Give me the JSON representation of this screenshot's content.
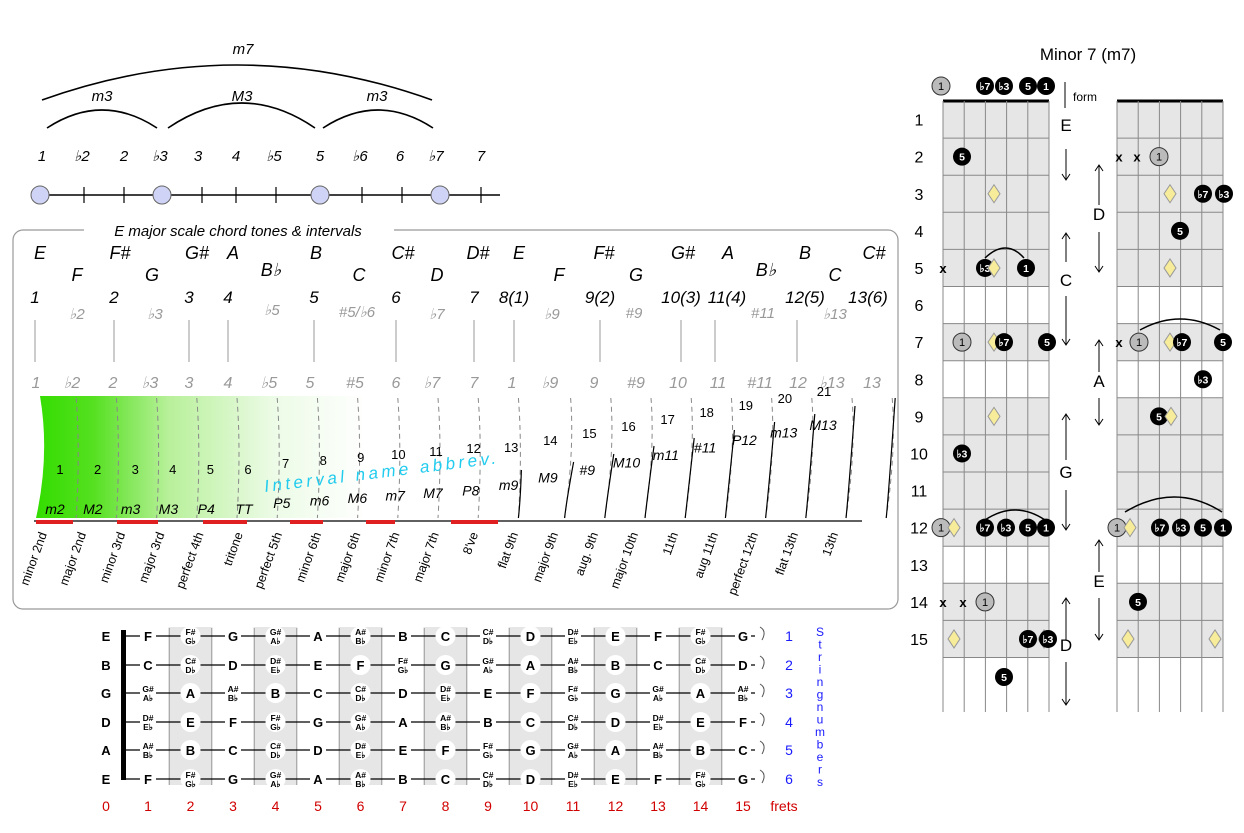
{
  "top_intervals": {
    "arcs": {
      "m7": "m7",
      "m3_a": "m3",
      "M3": "M3",
      "m3_b": "m3"
    },
    "degrees": [
      "1",
      "♭2",
      "2",
      "♭3",
      "3",
      "4",
      "♭5",
      "5",
      "♭6",
      "6",
      "♭7",
      "7"
    ]
  },
  "scale_panel": {
    "title": "E major scale chord tones & intervals",
    "note_row1": [
      "E",
      "F#",
      "G#",
      "A",
      "B",
      "C#",
      "D#",
      "E",
      "F#",
      "G#",
      "A",
      "B",
      "C#"
    ],
    "note_row2": [
      "F",
      "G",
      "B♭",
      "C",
      "D",
      "F",
      "G",
      "B♭",
      "C"
    ],
    "degree_row1": [
      "1",
      "2",
      "3",
      "4",
      "5",
      "6",
      "7",
      "8(1)",
      "9(2)",
      "10(3)",
      "11(4)",
      "12(5)",
      "13(6)"
    ],
    "degree_row2": [
      "♭2",
      "♭3",
      "♭5",
      "#5/♭6",
      "♭7",
      "♭9",
      "#9",
      "#11",
      "♭13"
    ],
    "gray_row": [
      "1",
      "♭2",
      "2",
      "♭3",
      "3",
      "4",
      "♭5",
      "5",
      "#5",
      "6",
      "♭7",
      "7",
      "1",
      "♭9",
      "9",
      "#9",
      "10",
      "11",
      "#11",
      "12",
      "♭13",
      "13"
    ],
    "semitones": [
      "1",
      "2",
      "3",
      "4",
      "5",
      "6",
      "7",
      "8",
      "9",
      "10",
      "11",
      "12",
      "13",
      "14",
      "15",
      "16",
      "17",
      "18",
      "19",
      "20",
      "21"
    ],
    "abbrevs": [
      "m2",
      "M2",
      "m3",
      "M3",
      "P4",
      "TT",
      "P5",
      "m6",
      "M6",
      "m7",
      "M7",
      "P8",
      "m9",
      "M9",
      "#9",
      "M10",
      "m11",
      "#11",
      "P12",
      "m13",
      "M13"
    ],
    "watermark": "Interval name abbrev.",
    "names": [
      "minor 2nd",
      "major 2nd",
      "minor 3rd",
      "major 3rd",
      "perfect 4th",
      "tritone",
      "perfect 5th",
      "minor 6th",
      "major 6th",
      "minor 7th",
      "major 7th",
      "8've",
      "flat 9th",
      "major 9th",
      "aug. 9th",
      "major 10th",
      "11th",
      "aug 11th",
      "perfect 12th",
      "flat 13th",
      "13th"
    ]
  },
  "fretboard": {
    "string_names": [
      "E",
      "B",
      "G",
      "D",
      "A",
      "E"
    ],
    "string_numbers": [
      "1",
      "2",
      "3",
      "4",
      "5",
      "6"
    ],
    "string_numbers_label": "String numbers",
    "fret_numbers": [
      "0",
      "1",
      "2",
      "3",
      "4",
      "5",
      "6",
      "7",
      "8",
      "9",
      "10",
      "11",
      "12",
      "13",
      "14",
      "15"
    ],
    "frets_label": "frets",
    "notes": [
      [
        "F",
        "F#|G♭",
        "G",
        "G#|A♭",
        "A",
        "A#|B♭",
        "B",
        "C",
        "C#|D♭",
        "D",
        "D#|E♭",
        "E",
        "F",
        "F#|G♭",
        "G"
      ],
      [
        "C",
        "C#|D♭",
        "D",
        "D#|E♭",
        "E",
        "F",
        "F#|G♭",
        "G",
        "G#|A♭",
        "A",
        "A#|B♭",
        "B",
        "C",
        "C#|D♭",
        "D"
      ],
      [
        "G#|A♭",
        "A",
        "A#|B♭",
        "B",
        "C",
        "C#|D♭",
        "D",
        "D#|E♭",
        "E",
        "F",
        "F#|G♭",
        "G",
        "G#|A♭",
        "A",
        "A#|B♭"
      ],
      [
        "D#|E♭",
        "E",
        "F",
        "F#|G♭",
        "G",
        "G#|A♭",
        "A",
        "A#|B♭",
        "B",
        "C",
        "C#|D♭",
        "D",
        "D#|E♭",
        "E",
        "F"
      ],
      [
        "A#|B♭",
        "B",
        "C",
        "C#|D♭",
        "D",
        "D#|E♭",
        "E",
        "F",
        "F#|G♭",
        "G",
        "G#|A♭",
        "A",
        "A#|B♭",
        "B",
        "C"
      ],
      [
        "F",
        "F#|G♭",
        "G",
        "G#|A♭",
        "A",
        "A#|B♭",
        "B",
        "C",
        "C#|D♭",
        "D",
        "D#|E♭",
        "E",
        "F",
        "F#|G♭",
        "G"
      ]
    ]
  },
  "chord_chart": {
    "title": "Minor 7 (m7)",
    "form_label": "form",
    "fret_numbers": [
      "1",
      "2",
      "3",
      "4",
      "5",
      "6",
      "7",
      "8",
      "9",
      "10",
      "11",
      "12",
      "13",
      "14",
      "15"
    ],
    "forms_left": [
      "E",
      "D",
      "C",
      "G",
      "D"
    ],
    "forms_right": [
      "D",
      "A",
      "E"
    ],
    "tone_labels": {
      "root": "1",
      "m3": "♭3",
      "fifth": "5",
      "m7": "♭7",
      "mute": "x"
    }
  },
  "colors": {
    "red": "#d10000",
    "blue": "#1a1aff",
    "green": "#33dd00",
    "cyan": "#22ccee",
    "root_fill": "#bbbbbb",
    "diamond_fill": "#f7ec9a"
  }
}
